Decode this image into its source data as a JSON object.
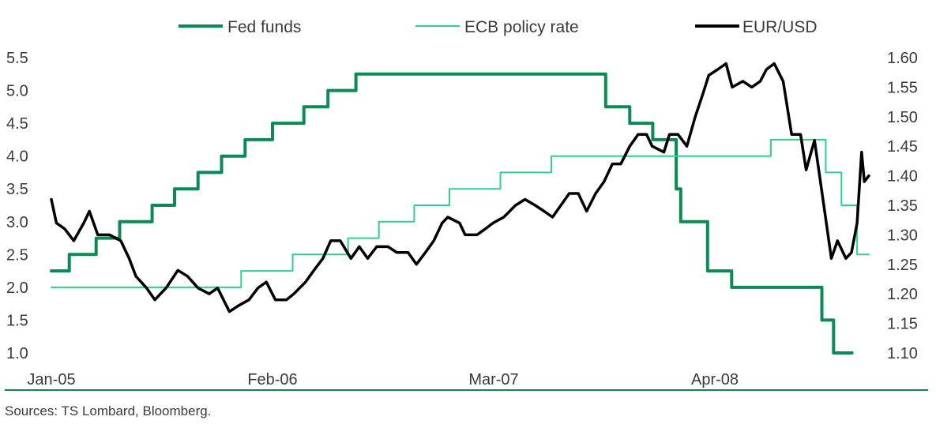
{
  "chart_data": {
    "type": "line",
    "title": "",
    "source": "Sources: TS Lombard, Bloomberg.",
    "legend_position": "top",
    "grid": false,
    "x_ticks": [
      "Jan-05",
      "Feb-06",
      "Mar-07",
      "Apr-08"
    ],
    "x_tick_dates": [
      "2005-01",
      "2006-02",
      "2007-03",
      "2008-04"
    ],
    "y_left": {
      "lim": [
        1.0,
        5.5
      ],
      "ticks": [
        "5.5",
        "5.0",
        "4.5",
        "4.0",
        "3.5",
        "3.0",
        "2.5",
        "2.0",
        "1.5",
        "1.0"
      ]
    },
    "y_right": {
      "lim": [
        1.1,
        1.6
      ],
      "ticks": [
        "1.60",
        "1.55",
        "1.50",
        "1.45",
        "1.40",
        "1.35",
        "1.30",
        "1.25",
        "1.20",
        "1.15",
        "1.10"
      ]
    },
    "series": [
      {
        "name": "Fed funds",
        "axis": "left",
        "color": "#0a8a55",
        "style": "step",
        "points": [
          [
            "2005-01-01",
            2.25
          ],
          [
            "2005-02-02",
            2.5
          ],
          [
            "2005-03-22",
            2.75
          ],
          [
            "2005-05-03",
            3.0
          ],
          [
            "2005-06-30",
            3.25
          ],
          [
            "2005-08-09",
            3.5
          ],
          [
            "2005-09-20",
            3.75
          ],
          [
            "2005-11-01",
            4.0
          ],
          [
            "2005-12-13",
            4.25
          ],
          [
            "2006-01-31",
            4.5
          ],
          [
            "2006-03-28",
            4.75
          ],
          [
            "2006-05-10",
            5.0
          ],
          [
            "2006-06-29",
            5.25
          ],
          [
            "2007-09-18",
            4.75
          ],
          [
            "2007-10-31",
            4.5
          ],
          [
            "2007-12-11",
            4.25
          ],
          [
            "2008-01-22",
            3.5
          ],
          [
            "2008-01-30",
            3.0
          ],
          [
            "2008-03-18",
            2.25
          ],
          [
            "2008-04-30",
            2.0
          ],
          [
            "2008-10-08",
            1.5
          ],
          [
            "2008-10-29",
            1.0
          ],
          [
            "2008-12-01",
            1.0
          ]
        ]
      },
      {
        "name": "ECB policy rate",
        "axis": "left",
        "color": "#2fd08e",
        "style": "step",
        "points": [
          [
            "2005-01-01",
            2.0
          ],
          [
            "2005-12-06",
            2.25
          ],
          [
            "2006-03-08",
            2.5
          ],
          [
            "2006-06-15",
            2.75
          ],
          [
            "2006-08-09",
            3.0
          ],
          [
            "2006-10-11",
            3.25
          ],
          [
            "2006-12-13",
            3.5
          ],
          [
            "2007-03-14",
            3.75
          ],
          [
            "2007-06-13",
            4.0
          ],
          [
            "2008-07-09",
            4.25
          ],
          [
            "2008-10-15",
            3.75
          ],
          [
            "2008-11-12",
            3.25
          ],
          [
            "2008-12-10",
            2.5
          ],
          [
            "2008-12-31",
            2.5
          ]
        ]
      },
      {
        "name": "EUR/USD",
        "axis": "right",
        "color": "#000000",
        "style": "line",
        "points": [
          [
            "2005-01-01",
            1.36
          ],
          [
            "2005-01-10",
            1.32
          ],
          [
            "2005-01-25",
            1.31
          ],
          [
            "2005-02-10",
            1.29
          ],
          [
            "2005-02-28",
            1.32
          ],
          [
            "2005-03-10",
            1.34
          ],
          [
            "2005-03-25",
            1.3
          ],
          [
            "2005-04-15",
            1.3
          ],
          [
            "2005-05-05",
            1.29
          ],
          [
            "2005-05-20",
            1.26
          ],
          [
            "2005-06-01",
            1.23
          ],
          [
            "2005-06-20",
            1.21
          ],
          [
            "2005-07-05",
            1.19
          ],
          [
            "2005-07-25",
            1.21
          ],
          [
            "2005-08-15",
            1.24
          ],
          [
            "2005-09-01",
            1.23
          ],
          [
            "2005-09-20",
            1.21
          ],
          [
            "2005-10-10",
            1.2
          ],
          [
            "2005-10-25",
            1.21
          ],
          [
            "2005-11-15",
            1.17
          ],
          [
            "2005-12-01",
            1.18
          ],
          [
            "2005-12-20",
            1.19
          ],
          [
            "2006-01-05",
            1.21
          ],
          [
            "2006-01-20",
            1.22
          ],
          [
            "2006-02-05",
            1.19
          ],
          [
            "2006-02-25",
            1.19
          ],
          [
            "2006-03-10",
            1.2
          ],
          [
            "2006-03-31",
            1.22
          ],
          [
            "2006-04-15",
            1.24
          ],
          [
            "2006-05-01",
            1.26
          ],
          [
            "2006-05-15",
            1.29
          ],
          [
            "2006-06-01",
            1.29
          ],
          [
            "2006-06-20",
            1.26
          ],
          [
            "2006-07-05",
            1.28
          ],
          [
            "2006-07-20",
            1.26
          ],
          [
            "2006-08-05",
            1.28
          ],
          [
            "2006-08-25",
            1.28
          ],
          [
            "2006-09-10",
            1.27
          ],
          [
            "2006-09-30",
            1.27
          ],
          [
            "2006-10-15",
            1.25
          ],
          [
            "2006-10-31",
            1.27
          ],
          [
            "2006-11-15",
            1.29
          ],
          [
            "2006-11-30",
            1.32
          ],
          [
            "2006-12-10",
            1.33
          ],
          [
            "2006-12-31",
            1.32
          ],
          [
            "2007-01-10",
            1.3
          ],
          [
            "2007-01-31",
            1.3
          ],
          [
            "2007-02-15",
            1.31
          ],
          [
            "2007-03-01",
            1.32
          ],
          [
            "2007-03-20",
            1.33
          ],
          [
            "2007-04-10",
            1.35
          ],
          [
            "2007-04-27",
            1.36
          ],
          [
            "2007-05-15",
            1.35
          ],
          [
            "2007-05-31",
            1.34
          ],
          [
            "2007-06-15",
            1.33
          ],
          [
            "2007-06-30",
            1.35
          ],
          [
            "2007-07-15",
            1.37
          ],
          [
            "2007-07-31",
            1.37
          ],
          [
            "2007-08-15",
            1.34
          ],
          [
            "2007-08-31",
            1.37
          ],
          [
            "2007-09-15",
            1.39
          ],
          [
            "2007-09-30",
            1.42
          ],
          [
            "2007-10-15",
            1.42
          ],
          [
            "2007-10-31",
            1.45
          ],
          [
            "2007-11-15",
            1.47
          ],
          [
            "2007-11-30",
            1.47
          ],
          [
            "2007-12-10",
            1.45
          ],
          [
            "2007-12-31",
            1.44
          ],
          [
            "2008-01-10",
            1.47
          ],
          [
            "2008-01-25",
            1.47
          ],
          [
            "2008-02-10",
            1.45
          ],
          [
            "2008-02-25",
            1.5
          ],
          [
            "2008-03-10",
            1.54
          ],
          [
            "2008-03-20",
            1.57
          ],
          [
            "2008-04-05",
            1.58
          ],
          [
            "2008-04-20",
            1.59
          ],
          [
            "2008-05-01",
            1.55
          ],
          [
            "2008-05-20",
            1.56
          ],
          [
            "2008-06-05",
            1.55
          ],
          [
            "2008-06-20",
            1.56
          ],
          [
            "2008-07-01",
            1.58
          ],
          [
            "2008-07-15",
            1.59
          ],
          [
            "2008-07-31",
            1.56
          ],
          [
            "2008-08-15",
            1.47
          ],
          [
            "2008-08-31",
            1.47
          ],
          [
            "2008-09-10",
            1.41
          ],
          [
            "2008-09-25",
            1.46
          ],
          [
            "2008-10-10",
            1.36
          ],
          [
            "2008-10-25",
            1.26
          ],
          [
            "2008-11-05",
            1.29
          ],
          [
            "2008-11-20",
            1.26
          ],
          [
            "2008-11-30",
            1.27
          ],
          [
            "2008-12-10",
            1.32
          ],
          [
            "2008-12-18",
            1.44
          ],
          [
            "2008-12-23",
            1.39
          ],
          [
            "2008-12-31",
            1.4
          ]
        ]
      }
    ]
  }
}
